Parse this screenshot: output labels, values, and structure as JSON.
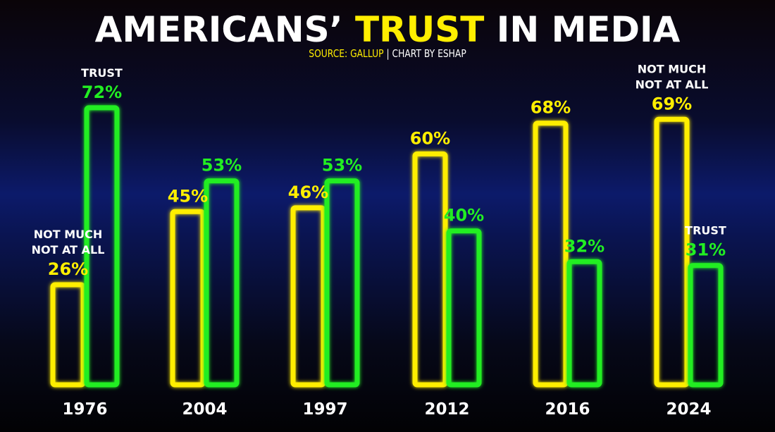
{
  "title": {
    "part1": "AMERICANS’",
    "highlight": "TRUST",
    "part2": "IN MEDIA",
    "highlight_color": "#ffee00"
  },
  "subtitle": {
    "source": "SOURCE: GALLUP",
    "separator": "|",
    "credit": "CHART BY ESHAP"
  },
  "colors": {
    "not_much": "#ffee00",
    "trust": "#22ee22",
    "year_label": "#ffffff",
    "annotation": "#ffffff"
  },
  "chart_data": {
    "type": "bar",
    "title": "AMERICANS’ TRUST IN MEDIA",
    "categories": [
      "1976",
      "2004",
      "1997",
      "2012",
      "2016",
      "2024"
    ],
    "series": [
      {
        "name": "NOT MUCH NOT AT ALL",
        "values": [
          26,
          45,
          46,
          60,
          68,
          69
        ]
      },
      {
        "name": "TRUST",
        "values": [
          72,
          53,
          53,
          40,
          32,
          31
        ]
      }
    ],
    "value_labels": {
      "not_much": [
        "26%",
        "45%",
        "46%",
        "60%",
        "68%",
        "69%"
      ],
      "trust": [
        "72%",
        "53%",
        "53%",
        "40%",
        "32%",
        "31%"
      ]
    },
    "annotations": [
      {
        "category": "1976",
        "series": "TRUST",
        "lines": [
          "TRUST"
        ]
      },
      {
        "category": "1976",
        "series": "NOT MUCH NOT AT ALL",
        "lines": [
          "NOT MUCH",
          "NOT AT ALL"
        ]
      },
      {
        "category": "2024",
        "series": "NOT MUCH NOT AT ALL",
        "lines": [
          "NOT MUCH",
          "NOT AT ALL"
        ]
      },
      {
        "category": "2024",
        "series": "TRUST",
        "lines": [
          "TRUST"
        ]
      }
    ],
    "ylim": [
      0,
      75
    ],
    "grid": false,
    "legend": "none"
  }
}
